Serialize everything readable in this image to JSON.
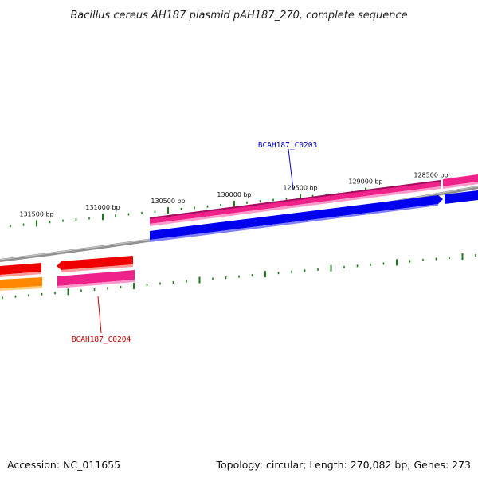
{
  "title": "Bacillus cereus AH187 plasmid pAH187_270, complete sequence",
  "ticks": [
    {
      "label": "131500 bp"
    },
    {
      "label": "131000 bp"
    },
    {
      "label": "130500 bp"
    },
    {
      "label": "130000 bp"
    },
    {
      "label": "129500 bp"
    },
    {
      "label": "129000 bp"
    },
    {
      "label": "128500 bp"
    }
  ],
  "genes": [
    {
      "label": "BCAH187_C0203",
      "color": "#0000cc"
    },
    {
      "label": "BCAH187_C0204",
      "color": "#cc0000"
    }
  ],
  "colors": {
    "tick": "#1a7a1a",
    "backbone": "#808080",
    "pink": "#ee2288",
    "blue": "#0000ee",
    "red": "#ee0000",
    "orange": "#ff8800"
  },
  "footer": {
    "accession": "Accession: NC_011655",
    "summary": "Topology: circular; Length: 270,082 bp; Genes: 273"
  }
}
